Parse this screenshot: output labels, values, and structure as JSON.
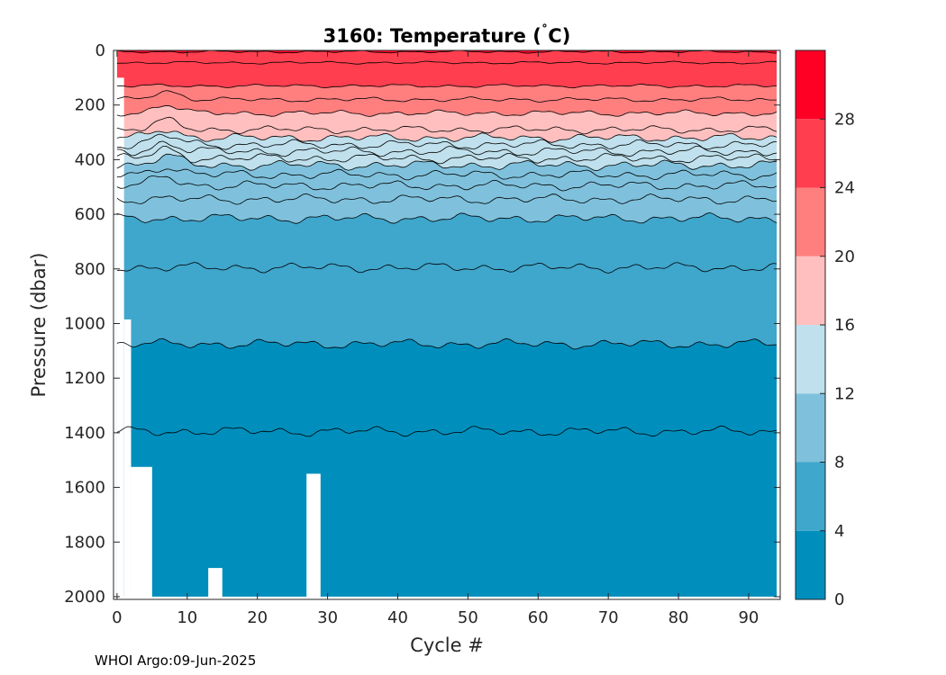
{
  "footer": "WHOI Argo:09-Jun-2025",
  "chart_data": {
    "type": "heatmap",
    "subtype": "filled-contour",
    "title_prefix": "3160:  Temperature (",
    "title_unit_deg": "˚",
    "title_unit": "C)",
    "xlabel": "Cycle #",
    "ylabel": "Pressure (dbar)",
    "xlim": [
      -0.5,
      94.5
    ],
    "ylim": [
      2010,
      0
    ],
    "y_reversed": true,
    "x_ticks": [
      0,
      10,
      20,
      30,
      40,
      50,
      60,
      70,
      80,
      90
    ],
    "y_ticks": [
      0,
      200,
      400,
      600,
      800,
      1000,
      1200,
      1400,
      1600,
      1800,
      2000
    ],
    "colorbar": {
      "range": [
        0,
        32
      ],
      "ticks": [
        0,
        4,
        8,
        12,
        16,
        20,
        24,
        28
      ],
      "bands": [
        {
          "from": 0,
          "to": 4,
          "color": "#008fbd"
        },
        {
          "from": 4,
          "to": 8,
          "color": "#3fa6cc"
        },
        {
          "from": 8,
          "to": 12,
          "color": "#7fc1dc"
        },
        {
          "from": 12,
          "to": 16,
          "color": "#bfe0ec"
        },
        {
          "from": 16,
          "to": 20,
          "color": "#ffbfbf"
        },
        {
          "from": 20,
          "to": 24,
          "color": "#ff7f7f"
        },
        {
          "from": 24,
          "to": 28,
          "color": "#ff3f4f"
        },
        {
          "from": 28,
          "to": 32,
          "color": "#ff0025"
        }
      ]
    },
    "contour_levels": [
      2,
      4,
      6,
      8,
      9,
      10,
      11,
      12,
      13,
      14,
      15,
      16,
      18,
      20,
      22,
      24,
      26,
      28
    ],
    "isotherm_mean_depth_dbar": {
      "2": 1395,
      "4": 1075,
      "6": 795,
      "8": 615,
      "9": 545,
      "10": 495,
      "11": 455,
      "12": 420,
      "13": 395,
      "14": 370,
      "15": 345,
      "16": 320,
      "18": 290,
      "20": 230,
      "22": 180,
      "24": 130,
      "26": 45,
      "28": 5
    },
    "profile_max_pressure_dbar": [
      {
        "cycles": [
          0,
          1
        ],
        "max_pressure": 100
      },
      {
        "cycles": [
          1,
          2
        ],
        "max_pressure": 985
      },
      {
        "cycles": [
          2,
          5
        ],
        "max_pressure": 1525
      },
      {
        "cycles": [
          5,
          13
        ],
        "max_pressure": 2000
      },
      {
        "cycles": [
          13,
          15
        ],
        "max_pressure": 1895
      },
      {
        "cycles": [
          15,
          27
        ],
        "max_pressure": 2000
      },
      {
        "cycles": [
          27,
          29
        ],
        "max_pressure": 1550
      },
      {
        "cycles": [
          29,
          94
        ],
        "max_pressure": 2000
      }
    ],
    "grid": false
  }
}
